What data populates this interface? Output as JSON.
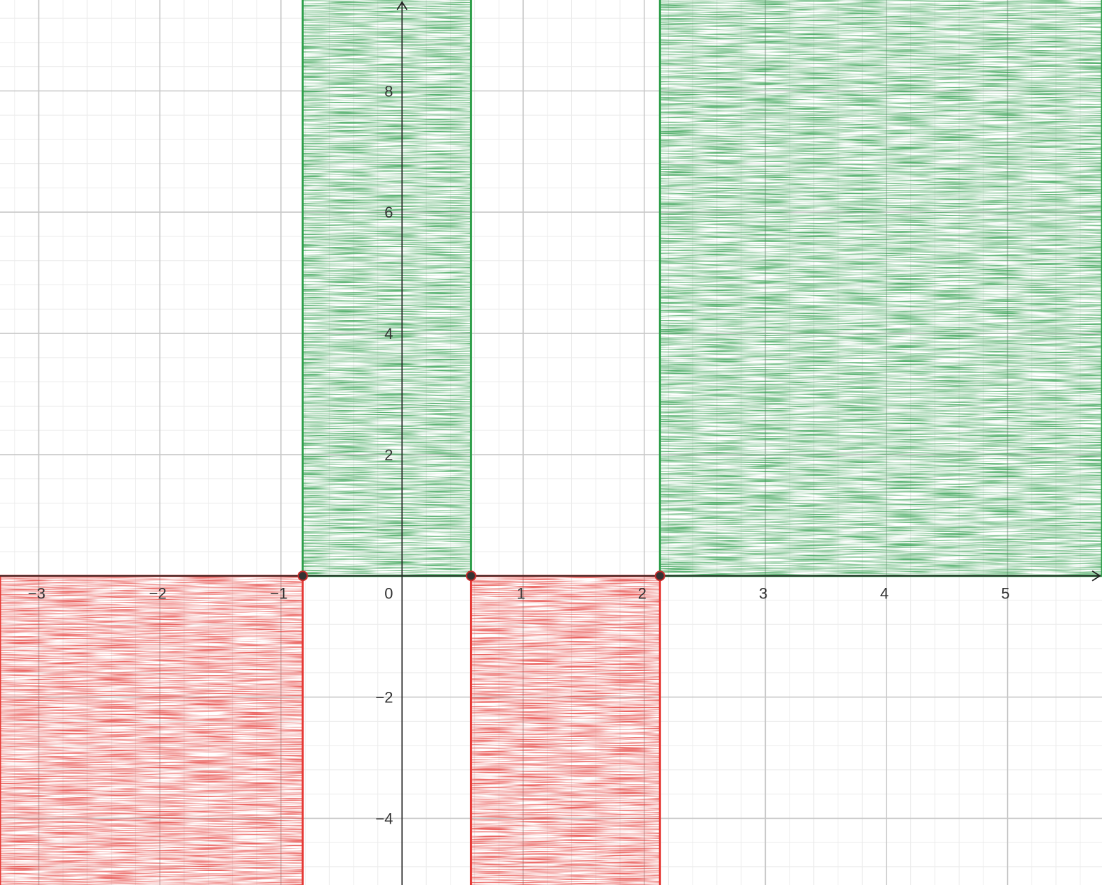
{
  "chart_data": {
    "type": "area",
    "title": "",
    "xlabel": "",
    "ylabel": "",
    "xlim": [
      -3.32,
      5.78
    ],
    "ylim": [
      -5.1,
      9.5
    ],
    "grid": true,
    "x_major_step": 1,
    "y_major_step": 2,
    "minor_per_major": 5,
    "x_ticks": [
      {
        "value": -3,
        "label": "−3"
      },
      {
        "value": -2,
        "label": "−2"
      },
      {
        "value": -1,
        "label": "−1"
      },
      {
        "value": 1,
        "label": "1"
      },
      {
        "value": 2,
        "label": "2"
      },
      {
        "value": 3,
        "label": "3"
      },
      {
        "value": 4,
        "label": "4"
      },
      {
        "value": 5,
        "label": "5"
      }
    ],
    "y_ticks": [
      {
        "value": -4,
        "label": "−4"
      },
      {
        "value": -2,
        "label": "−2"
      },
      {
        "value": 2,
        "label": "2"
      },
      {
        "value": 4,
        "label": "4"
      },
      {
        "value": 6,
        "label": "6"
      },
      {
        "value": 8,
        "label": "8"
      }
    ],
    "origin_label": "0",
    "regions": [
      {
        "x0": -3.32,
        "x1": -0.82,
        "sign": "negative",
        "color": "#e53935"
      },
      {
        "x0": -0.82,
        "x1": 0.57,
        "sign": "positive",
        "color": "#2e9e4a"
      },
      {
        "x0": 0.57,
        "x1": 2.13,
        "sign": "negative",
        "color": "#e53935"
      },
      {
        "x0": 2.13,
        "x1": 5.78,
        "sign": "positive",
        "color": "#2e9e4a"
      }
    ],
    "points": [
      {
        "x": -0.82,
        "y": 0
      },
      {
        "x": 0.57,
        "y": 0
      },
      {
        "x": 2.13,
        "y": 0
      }
    ],
    "colors": {
      "positive": "#2e9e4a",
      "negative": "#e53935",
      "axis": "#222222",
      "grid_major": "#c8c8c8",
      "grid_minor": "#ebebeb"
    }
  }
}
